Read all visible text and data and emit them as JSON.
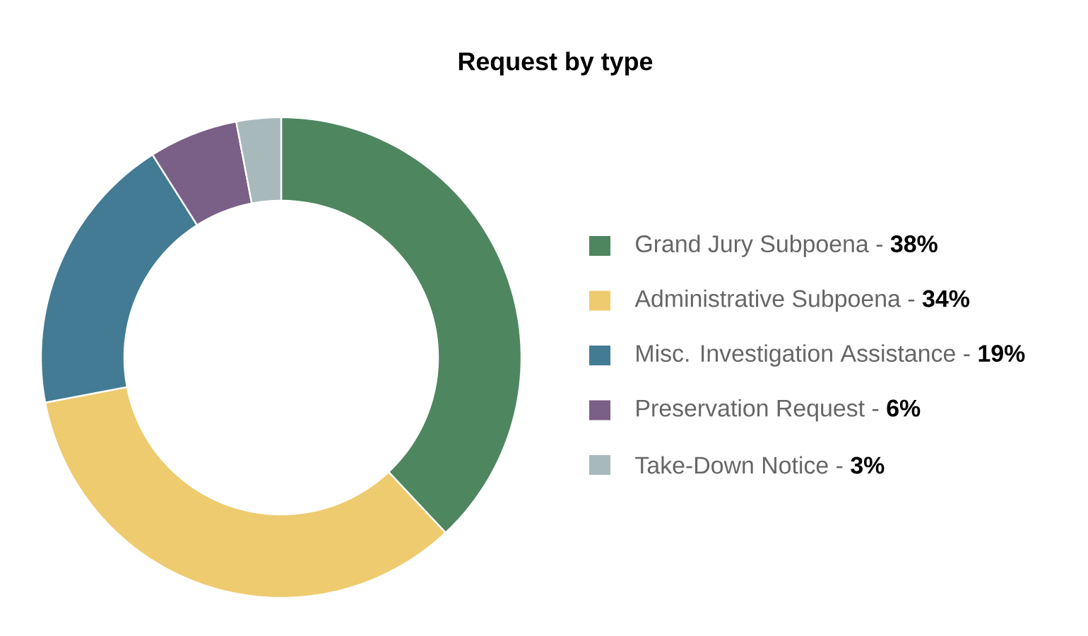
{
  "chart_data": {
    "type": "donut",
    "title": "Request by type",
    "categories": [
      "Grand Jury Subpoena - **38%**",
      "Administrative Subpoena - **34%**",
      "Misc. Investigation Assistance - **19%**",
      "Preservation Request - **6%**",
      "Take-Down Notice - **3%**"
    ],
    "values": [
      38,
      34,
      19,
      6,
      3
    ],
    "colors": [
      "#4e8660",
      "#eecb6f",
      "#437b94",
      "#7a5f87",
      "#a8b9bc"
    ],
    "legend": "right"
  }
}
